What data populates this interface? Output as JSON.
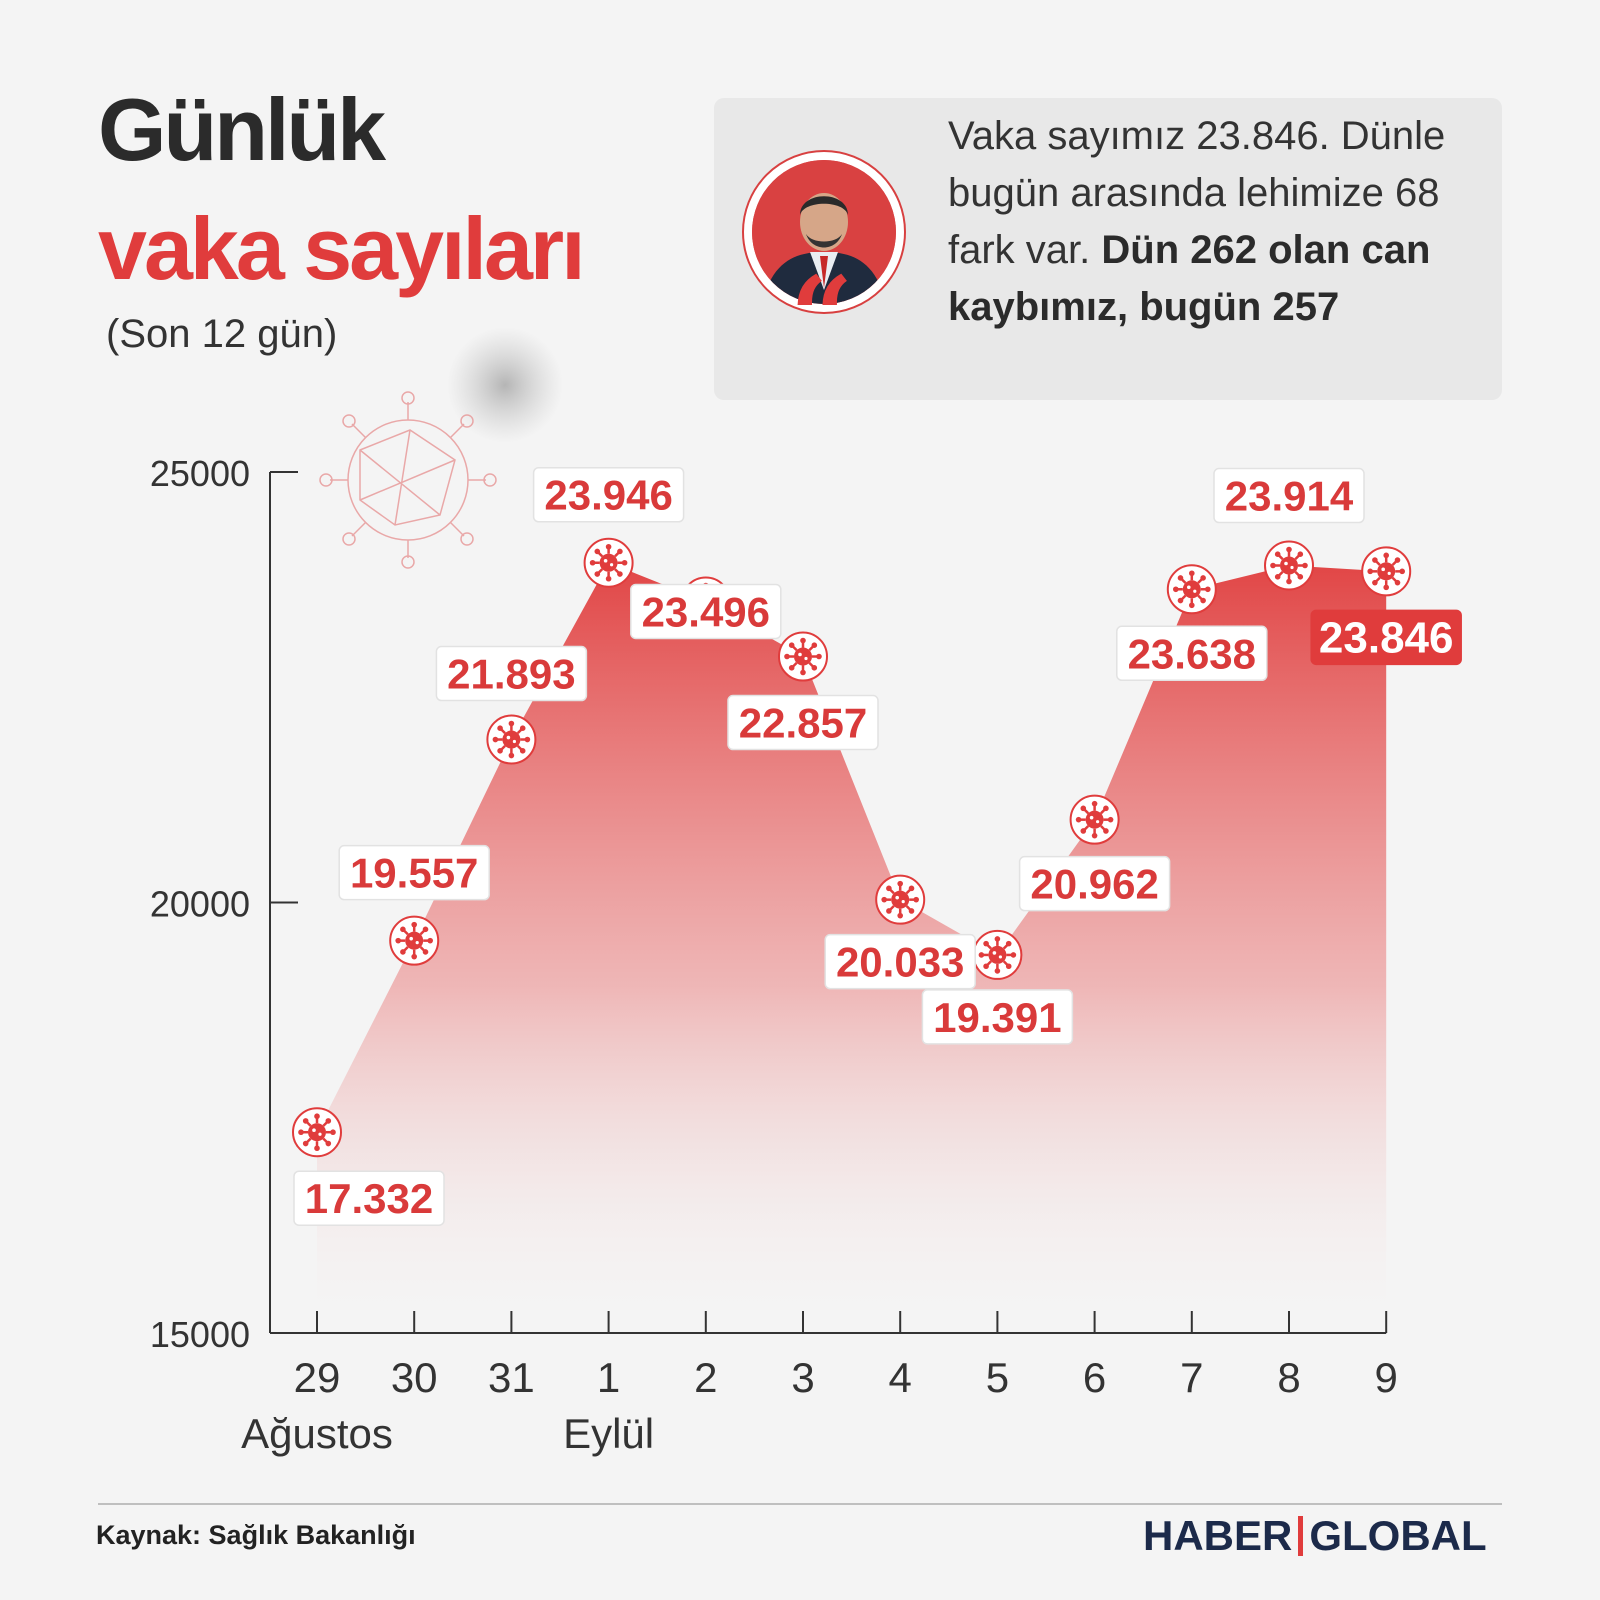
{
  "header": {
    "title_line1": "Günlük",
    "title_line2": "vaka sayıları",
    "subtitle": "(Son 12 gün)"
  },
  "quote": {
    "text_regular": "Vaka sayımız 23.846. Dünle bugün arasında lehimize 68 fark var. ",
    "text_bold": "Dün 262 olan can kaybımız, bugün 257",
    "mark": "“",
    "avatar_icon": "minister-portrait"
  },
  "chart_data": {
    "type": "area",
    "categories": [
      "29",
      "30",
      "31",
      "1",
      "2",
      "3",
      "4",
      "5",
      "6",
      "7",
      "8",
      "9"
    ],
    "values": [
      17332,
      19557,
      21893,
      23946,
      23496,
      22857,
      20033,
      19391,
      20962,
      23638,
      23914,
      23846
    ],
    "value_labels": [
      "17.332",
      "19.557",
      "21.893",
      "23.946",
      "23.496",
      "22.857",
      "20.033",
      "19.391",
      "20.962",
      "23.638",
      "23.914",
      "23.846"
    ],
    "month_labels": [
      {
        "index": 0,
        "label": "Ağustos"
      },
      {
        "index": 3,
        "label": "Eylül"
      }
    ],
    "yticks": [
      15000,
      20000,
      25000
    ],
    "ylim": [
      15000,
      25000
    ],
    "highlight_index": 11,
    "marker_icon": "virus-icon",
    "colors": {
      "accent": "#e03c3c",
      "highlight_bg": "#e03c3c",
      "label_text": "#d93a3a",
      "axis": "#333333"
    }
  },
  "footer": {
    "source": "Kaynak: Sağlık Bakanlığı",
    "brand_left": "HABER",
    "brand_right": "GLOBAL"
  }
}
